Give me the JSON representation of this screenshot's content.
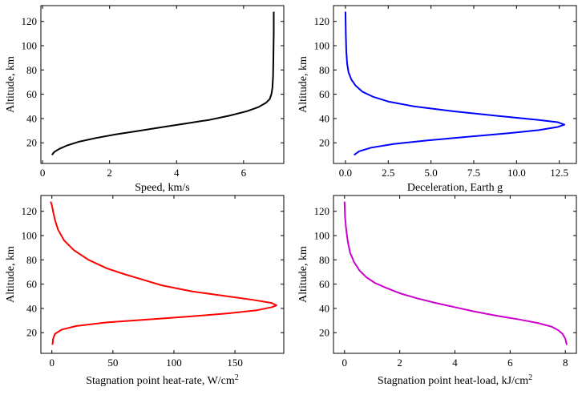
{
  "chart_data": [
    {
      "type": "line",
      "xlabel": "Speed, km/s",
      "ylabel": "Altitude, km",
      "xlim": [
        -0.05,
        7.2
      ],
      "ylim": [
        3,
        133
      ],
      "xticks": [
        0,
        2,
        4,
        6
      ],
      "yticks": [
        20,
        40,
        60,
        80,
        100,
        120
      ],
      "grid": false,
      "series": [
        {
          "color": "#000000",
          "points": [
            [
              0.28,
              10
            ],
            [
              0.35,
              12.5
            ],
            [
              0.5,
              15
            ],
            [
              0.75,
              18
            ],
            [
              1.1,
              21
            ],
            [
              1.6,
              24
            ],
            [
              2.2,
              27
            ],
            [
              2.9,
              30
            ],
            [
              3.6,
              33
            ],
            [
              4.3,
              36
            ],
            [
              5.0,
              39
            ],
            [
              5.6,
              42.5
            ],
            [
              6.1,
              46
            ],
            [
              6.45,
              49.5
            ],
            [
              6.67,
              53
            ],
            [
              6.78,
              56
            ],
            [
              6.83,
              60
            ],
            [
              6.86,
              65
            ],
            [
              6.88,
              75
            ],
            [
              6.89,
              90
            ],
            [
              6.9,
              110
            ],
            [
              6.9,
              128
            ]
          ]
        }
      ]
    },
    {
      "type": "line",
      "xlabel": "Deceleration, Earth g",
      "ylabel": "Altitude, km",
      "xlim": [
        -0.7,
        13.5
      ],
      "ylim": [
        3,
        133
      ],
      "xticks": [
        0.0,
        2.5,
        5.0,
        7.5,
        10.0,
        12.5
      ],
      "xticklabels": [
        "0.0",
        "2.5",
        "5.0",
        "7.5",
        "10.0",
        "12.5"
      ],
      "yticks": [
        20,
        40,
        60,
        80,
        100,
        120
      ],
      "grid": false,
      "series": [
        {
          "color": "#0000ff",
          "points": [
            [
              0.5,
              10
            ],
            [
              0.8,
              13
            ],
            [
              1.5,
              16
            ],
            [
              2.8,
              19
            ],
            [
              4.8,
              22
            ],
            [
              7.2,
              25
            ],
            [
              9.6,
              28
            ],
            [
              11.3,
              30.5
            ],
            [
              12.4,
              33
            ],
            [
              12.8,
              35
            ],
            [
              12.4,
              37
            ],
            [
              11.2,
              39
            ],
            [
              9.0,
              42
            ],
            [
              6.3,
              46
            ],
            [
              4.0,
              50
            ],
            [
              2.5,
              54
            ],
            [
              1.6,
              58
            ],
            [
              1.0,
              62
            ],
            [
              0.6,
              67
            ],
            [
              0.35,
              72
            ],
            [
              0.18,
              78
            ],
            [
              0.1,
              85
            ],
            [
              0.05,
              95
            ],
            [
              0.02,
              110
            ],
            [
              0.0,
              128
            ]
          ]
        }
      ]
    },
    {
      "type": "line",
      "xlabel": "Stagnation point heat-rate, W/cm",
      "xlabel_sup": "2",
      "ylabel": "Altitude, km",
      "xlim": [
        -9,
        190
      ],
      "ylim": [
        3,
        133
      ],
      "xticks": [
        0,
        50,
        100,
        150
      ],
      "yticks": [
        20,
        40,
        60,
        80,
        100,
        120
      ],
      "grid": false,
      "series": [
        {
          "color": "#ff0000",
          "points": [
            [
              0.5,
              10
            ],
            [
              1.0,
              15
            ],
            [
              2.5,
              19
            ],
            [
              8,
              22.5
            ],
            [
              20,
              25.5
            ],
            [
              45,
              28.5
            ],
            [
              80,
              31
            ],
            [
              115,
              33.5
            ],
            [
              145,
              36
            ],
            [
              168,
              38.5
            ],
            [
              180,
              41
            ],
            [
              184,
              42.5
            ],
            [
              180,
              44.5
            ],
            [
              165,
              47
            ],
            [
              140,
              50.5
            ],
            [
              115,
              54
            ],
            [
              90,
              59
            ],
            [
              75,
              63.5
            ],
            [
              60,
              68
            ],
            [
              45,
              73
            ],
            [
              30,
              80
            ],
            [
              18,
              88
            ],
            [
              10,
              96
            ],
            [
              5,
              105
            ],
            [
              2.5,
              113
            ],
            [
              1,
              120
            ],
            [
              0,
              125
            ],
            [
              -1,
              128
            ]
          ]
        }
      ]
    },
    {
      "type": "line",
      "xlabel": "Stagnation point heat-load, kJ/cm",
      "xlabel_sup": "2",
      "ylabel": "Altitude, km",
      "xlim": [
        -0.4,
        8.4
      ],
      "ylim": [
        3,
        133
      ],
      "xticks": [
        0,
        2,
        4,
        6,
        8
      ],
      "yticks": [
        20,
        40,
        60,
        80,
        100,
        120
      ],
      "grid": false,
      "series": [
        {
          "color": "#cc00cc",
          "points": [
            [
              8.05,
              10
            ],
            [
              8.0,
              15
            ],
            [
              7.9,
              19
            ],
            [
              7.75,
              22
            ],
            [
              7.5,
              25
            ],
            [
              7.0,
              28
            ],
            [
              6.3,
              31
            ],
            [
              5.5,
              34
            ],
            [
              4.7,
              37.5
            ],
            [
              4.0,
              41
            ],
            [
              3.3,
              44.5
            ],
            [
              2.6,
              48.5
            ],
            [
              2.0,
              52.5
            ],
            [
              1.5,
              57
            ],
            [
              1.1,
              61
            ],
            [
              0.8,
              65.5
            ],
            [
              0.55,
              71
            ],
            [
              0.35,
              78
            ],
            [
              0.2,
              86
            ],
            [
              0.12,
              95
            ],
            [
              0.06,
              105
            ],
            [
              0.02,
              115
            ],
            [
              0.0,
              128
            ]
          ]
        }
      ]
    }
  ]
}
